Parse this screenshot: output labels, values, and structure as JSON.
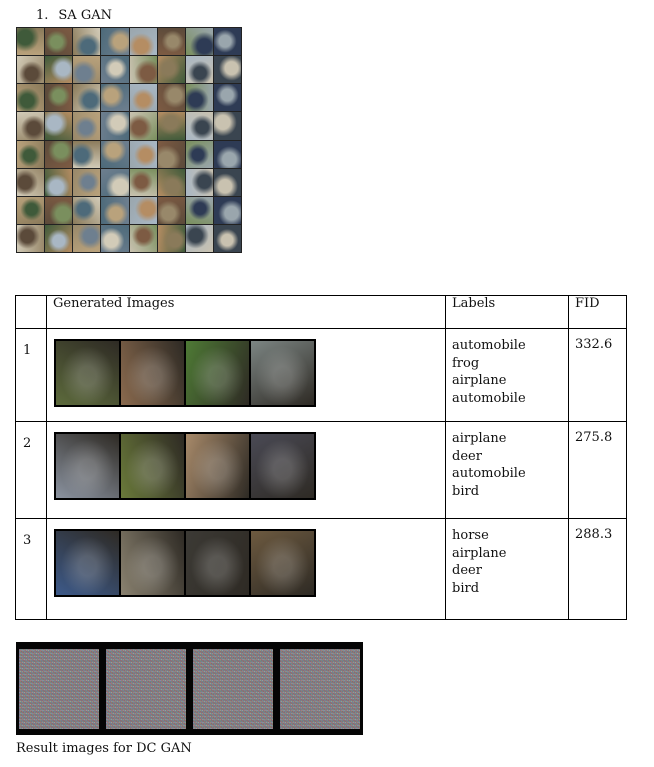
{
  "section_number": "1.",
  "section_title": "SA GAN",
  "sample_grid": {
    "rows": 8,
    "cols": 8,
    "palette": [
      "#6e7f8f",
      "#8a7a5a",
      "#3f5a3a",
      "#b9a27c",
      "#2e3b55",
      "#a9b7c4",
      "#7d5b43",
      "#c9c2b0",
      "#4d6a7a",
      "#98886a",
      "#5b4a3a",
      "#d2cbb8",
      "#3a4550",
      "#7a8f5e",
      "#b58d63",
      "#9aa6ad"
    ]
  },
  "table": {
    "headers": [
      "",
      "Generated Images",
      "Labels",
      "FID"
    ],
    "rows": [
      {
        "index": "1",
        "labels": [
          "automobile",
          "frog",
          "airplane",
          "automobile"
        ],
        "fid": "332.6",
        "thumb_colors": [
          "#5d6b3c",
          "#8a6a4e",
          "#4e7a35",
          "#7c8583"
        ]
      },
      {
        "index": "2",
        "labels": [
          "airplane",
          "deer",
          "automobile",
          "bird"
        ],
        "fid": "275.8",
        "thumb_colors": [
          "#8b93a0",
          "#6a7a3a",
          "#a88a6a",
          "#4a4a55"
        ]
      },
      {
        "index": "3",
        "labels": [
          "horse",
          "airplane",
          "deer",
          "bird"
        ],
        "fid": "288.3",
        "thumb_colors": [
          "#3d5a8a",
          "#8a8270",
          "#3c3a35",
          "#6d5a40"
        ]
      }
    ]
  },
  "dcgan": {
    "count": 4,
    "caption": "Result images for DC GAN"
  }
}
